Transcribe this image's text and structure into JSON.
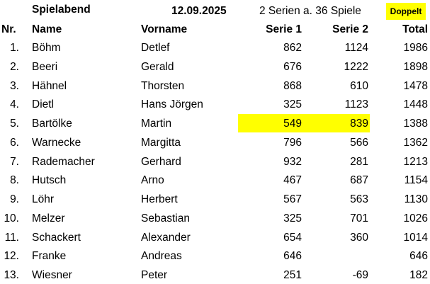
{
  "header": {
    "title": "Spielabend",
    "date": "12.09.2025",
    "info": "2 Serien a. 36 Spiele",
    "badge": "Doppelt"
  },
  "table": {
    "columns": [
      "Nr.",
      "Name",
      "Vorname",
      "Serie 1",
      "Serie 2",
      "Total"
    ],
    "rows": [
      [
        "1.",
        "Böhm",
        "Detlef",
        862,
        1124,
        1986
      ],
      [
        "2.",
        "Beeri",
        "Gerald",
        676,
        1222,
        1898
      ],
      [
        "3.",
        "Hähnel",
        "Thorsten",
        868,
        610,
        1478
      ],
      [
        "4.",
        "Dietl",
        "Hans Jörgen",
        325,
        1123,
        1448
      ],
      [
        "5.",
        "Bartölke",
        "Martin",
        549,
        839,
        1388
      ],
      [
        "6.",
        "Warnecke",
        "Margitta",
        796,
        566,
        1362
      ],
      [
        "7.",
        "Rademacher",
        "Gerhard",
        932,
        281,
        1213
      ],
      [
        "8.",
        "Hutsch",
        "Arno",
        467,
        687,
        1154
      ],
      [
        "9.",
        "Löhr",
        "Herbert",
        567,
        563,
        1130
      ],
      [
        "10.",
        "Melzer",
        "Sebastian",
        325,
        701,
        1026
      ],
      [
        "11.",
        "Schackert",
        "Alexander",
        654,
        360,
        1014
      ],
      [
        "12.",
        "Franke",
        "Andreas",
        646,
        null,
        646
      ],
      [
        "13.",
        "Wiesner",
        "Peter",
        251,
        -69,
        182
      ]
    ]
  }
}
